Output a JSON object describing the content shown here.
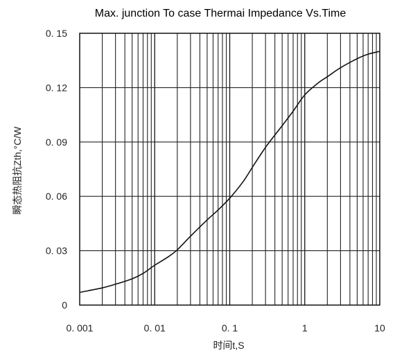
{
  "chart_data": {
    "type": "line",
    "title": "Max. junction To case Thermai Impedance Vs.Time",
    "xlabel": "时间t,S",
    "ylabel": "瞬态热阻抗Zth,°C/W",
    "x_scale": "log",
    "xlim": [
      0.001,
      10
    ],
    "ylim": [
      0,
      0.15
    ],
    "grid": true,
    "x_tick_labels": [
      "0. 001",
      "0. 01",
      "0. 1",
      "1",
      "10"
    ],
    "x_tick_values": [
      0.001,
      0.01,
      0.1,
      1,
      10
    ],
    "y_tick_labels": [
      "0",
      "0. 03",
      "0. 06",
      "0. 09",
      "0. 12",
      "0. 15"
    ],
    "y_tick_values": [
      0,
      0.03,
      0.06,
      0.09,
      0.12,
      0.15
    ],
    "series": [
      {
        "x": [
          0.001,
          0.002,
          0.003,
          0.005,
          0.007,
          0.01,
          0.015,
          0.02,
          0.03,
          0.05,
          0.07,
          0.1,
          0.15,
          0.2,
          0.3,
          0.5,
          0.7,
          1,
          1.5,
          2,
          3,
          5,
          7,
          10
        ],
        "y": [
          0.007,
          0.0095,
          0.0115,
          0.0145,
          0.0175,
          0.022,
          0.0265,
          0.0305,
          0.038,
          0.047,
          0.0525,
          0.059,
          0.068,
          0.076,
          0.087,
          0.099,
          0.107,
          0.116,
          0.1225,
          0.126,
          0.131,
          0.136,
          0.1385,
          0.14
        ]
      }
    ]
  }
}
